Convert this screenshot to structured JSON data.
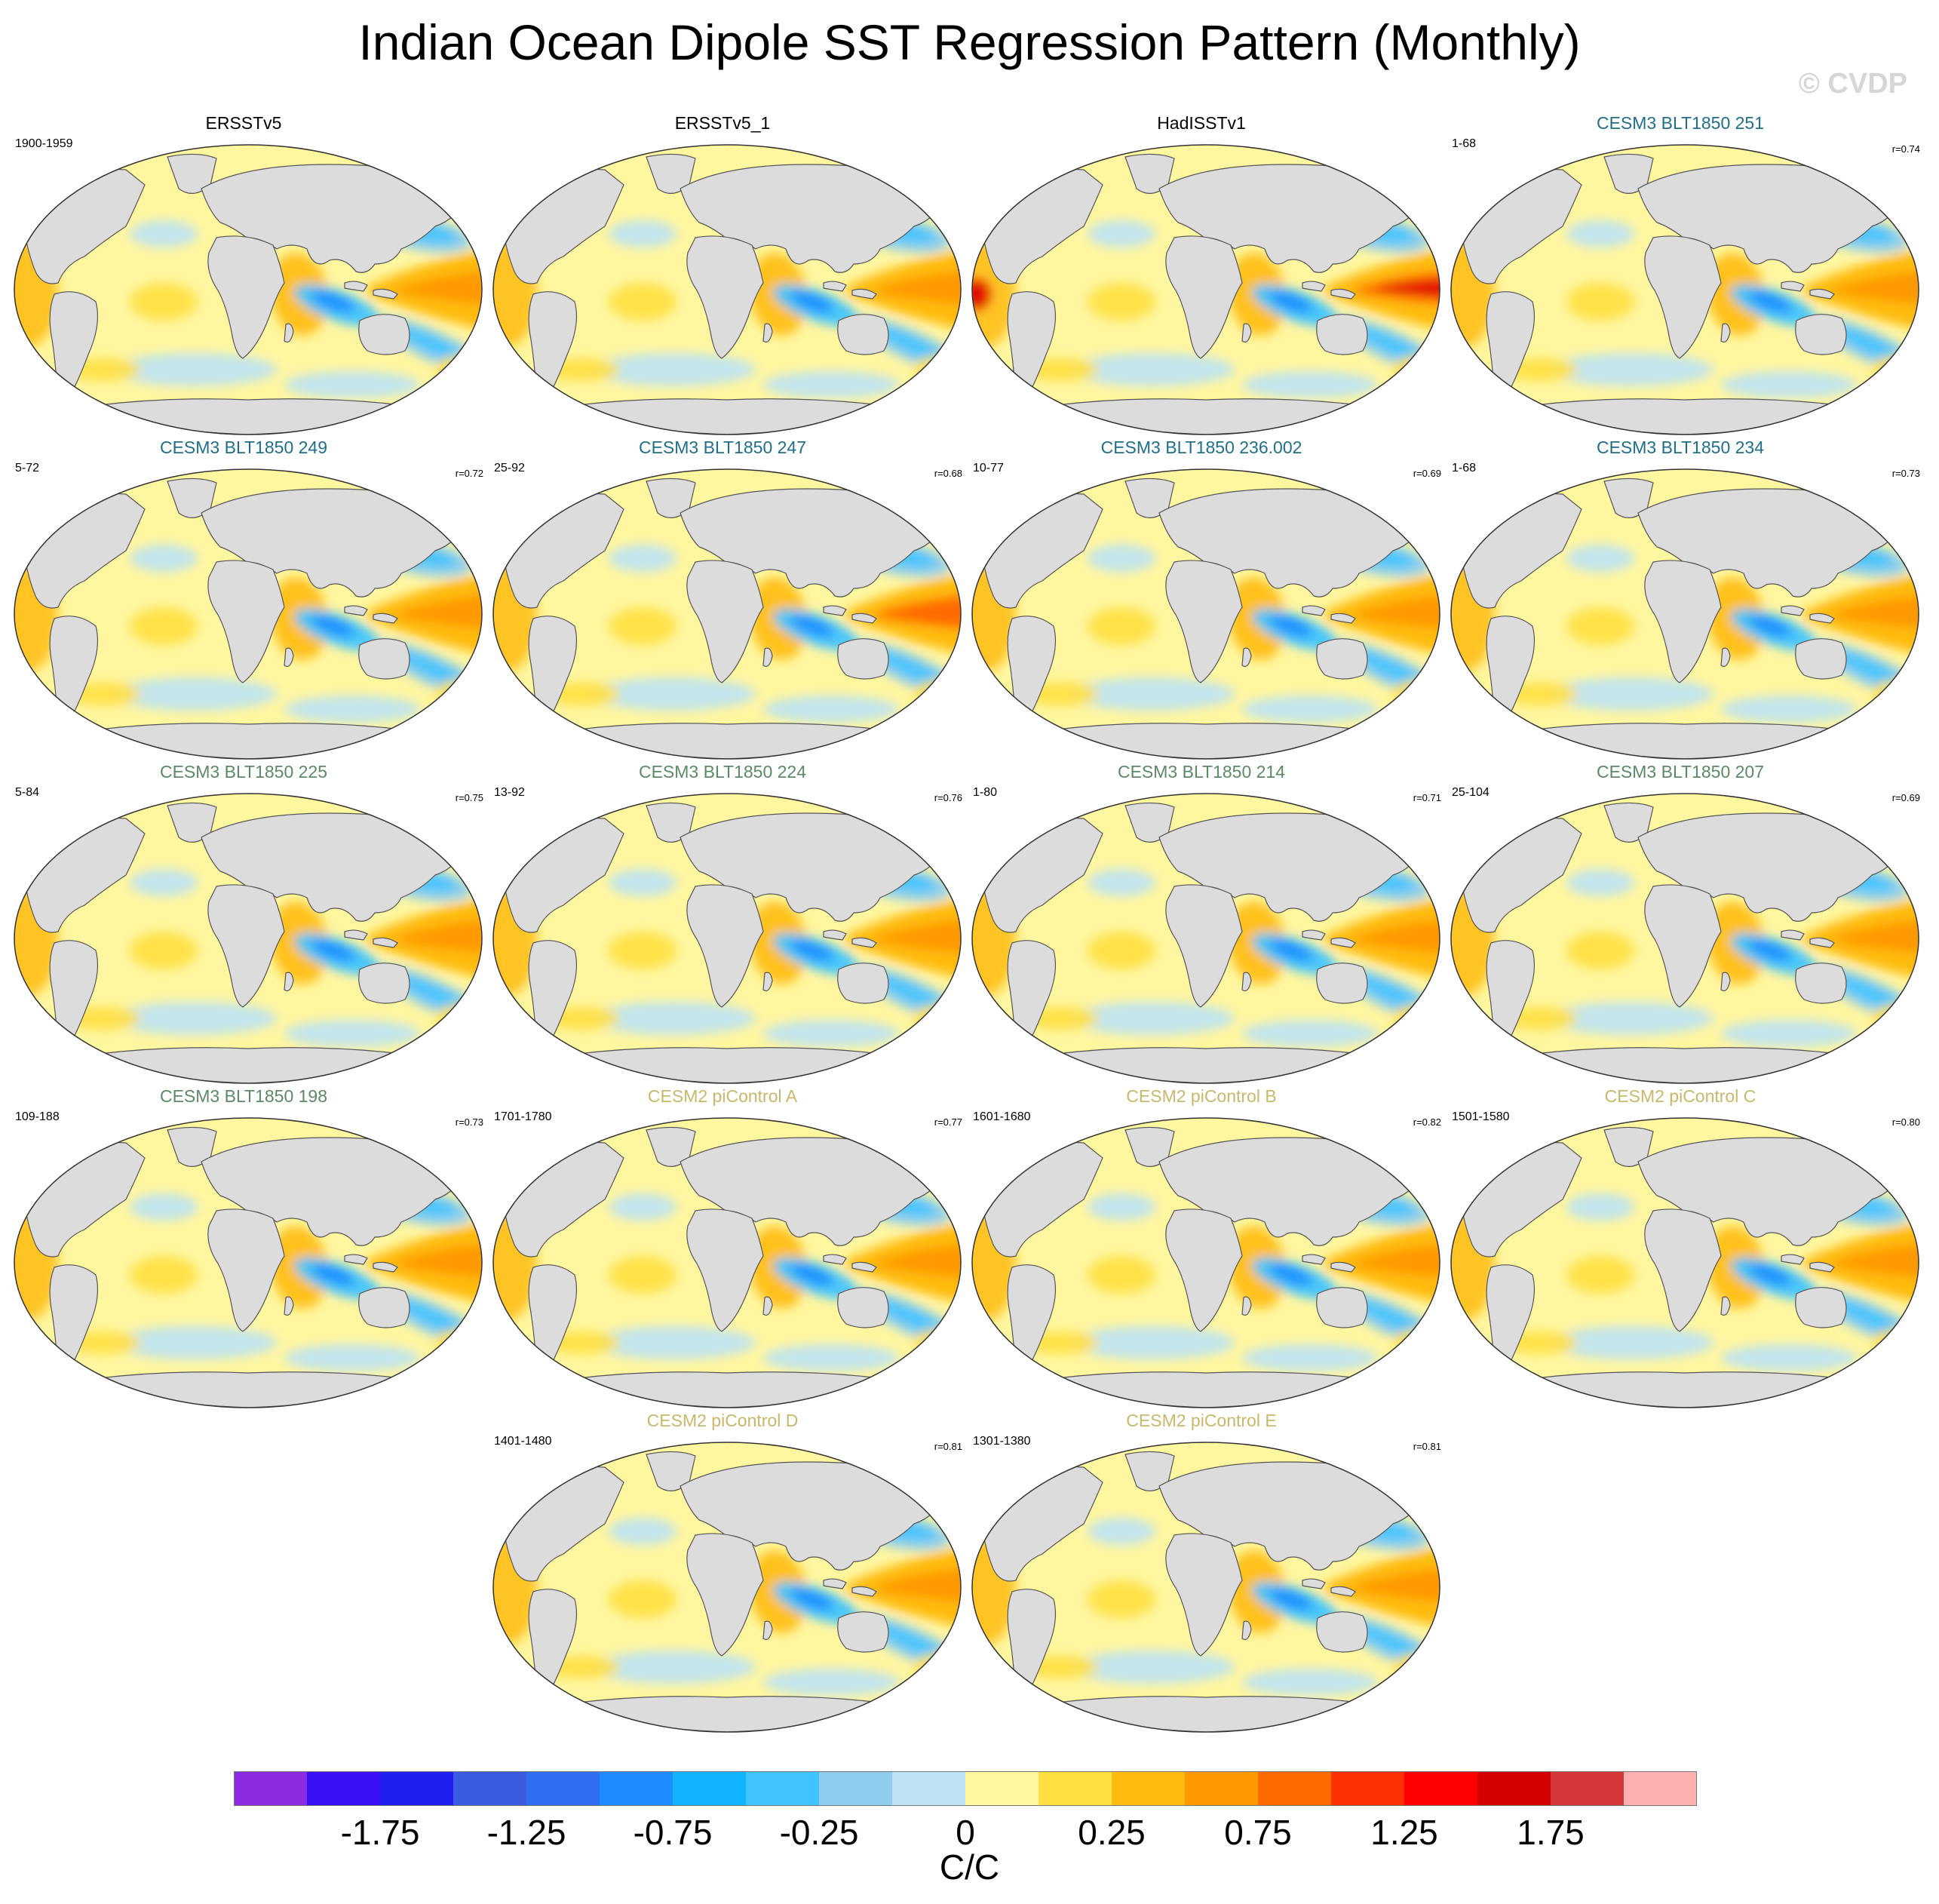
{
  "title": "Indian Ocean Dipole SST Regression Pattern (Monthly)",
  "watermark": "© CVDP",
  "panels": [
    {
      "title": "ERSSTv5",
      "years": "1900-1959",
      "r": "",
      "title_color": "#000000",
      "intensity": 0.85
    },
    {
      "title": "ERSSTv5_1",
      "years": "",
      "r": "",
      "title_color": "#000000",
      "intensity": 0.7
    },
    {
      "title": "HadISSTv1",
      "years": "",
      "r": "",
      "title_color": "#000000",
      "intensity": 1.4
    },
    {
      "title": "CESM3 BLT1850 251",
      "years": "1-68",
      "r": "r=0.74",
      "title_color": "#1f6f8b",
      "intensity": 1.0
    },
    {
      "title": "CESM3 BLT1850 249",
      "years": "5-72",
      "r": "r=0.72",
      "title_color": "#1f6f8b",
      "intensity": 1.1
    },
    {
      "title": "CESM3 BLT1850 247",
      "years": "25-92",
      "r": "r=0.68",
      "title_color": "#1f6f8b",
      "intensity": 1.15
    },
    {
      "title": "CESM3 BLT1850 236.002",
      "years": "10-77",
      "r": "r=0.69",
      "title_color": "#1f6f8b",
      "intensity": 1.05
    },
    {
      "title": "CESM3 BLT1850 234",
      "years": "1-68",
      "r": "r=0.73",
      "title_color": "#1f6f8b",
      "intensity": 1.0
    },
    {
      "title": "CESM3 BLT1850 225",
      "years": "5-84",
      "r": "r=0.75",
      "title_color": "#5b8a66",
      "intensity": 1.05
    },
    {
      "title": "CESM3 BLT1850 224",
      "years": "13-92",
      "r": "r=0.76",
      "title_color": "#5b8a66",
      "intensity": 1.05
    },
    {
      "title": "CESM3 BLT1850 214",
      "years": "1-80",
      "r": "r=0.71",
      "title_color": "#5b8a66",
      "intensity": 1.0
    },
    {
      "title": "CESM3 BLT1850 207",
      "years": "25-104",
      "r": "r=0.69",
      "title_color": "#5b8a66",
      "intensity": 0.95
    },
    {
      "title": "CESM3 BLT1850 198",
      "years": "109-188",
      "r": "r=0.73",
      "title_color": "#5b8a66",
      "intensity": 1.0
    },
    {
      "title": "CESM2 piControl A",
      "years": "1701-1780",
      "r": "r=0.77",
      "title_color": "#c9b86a",
      "intensity": 0.9
    },
    {
      "title": "CESM2 piControl B",
      "years": "1601-1680",
      "r": "r=0.82",
      "title_color": "#c9b86a",
      "intensity": 0.95
    },
    {
      "title": "CESM2 piControl C",
      "years": "1501-1580",
      "r": "r=0.80",
      "title_color": "#c9b86a",
      "intensity": 1.1
    },
    {
      "title": "CESM2 piControl D",
      "years": "1401-1480",
      "r": "r=0.81",
      "title_color": "#c9b86a",
      "intensity": 0.9
    },
    {
      "title": "CESM2 piControl E",
      "years": "1301-1380",
      "r": "r=0.81",
      "title_color": "#c9b86a",
      "intensity": 0.95
    }
  ],
  "colorbar": {
    "colors": [
      "#8a2be2",
      "#3b0ff5",
      "#1f1ff0",
      "#3a5be0",
      "#2f6ef0",
      "#1e8cff",
      "#10b4ff",
      "#40c4ff",
      "#8fcdee",
      "#bde3f4",
      "#fff6a0",
      "#ffe040",
      "#ffbb10",
      "#ff9900",
      "#ff6a00",
      "#ff3000",
      "#ff0000",
      "#d40000",
      "#d43838",
      "#ffb0b0"
    ],
    "tick_labels": [
      "-1.75",
      "-1.25",
      "-0.75",
      "-0.25",
      "0",
      "0.25",
      "0.75",
      "1.25",
      "1.75"
    ],
    "unit": "C/C"
  }
}
